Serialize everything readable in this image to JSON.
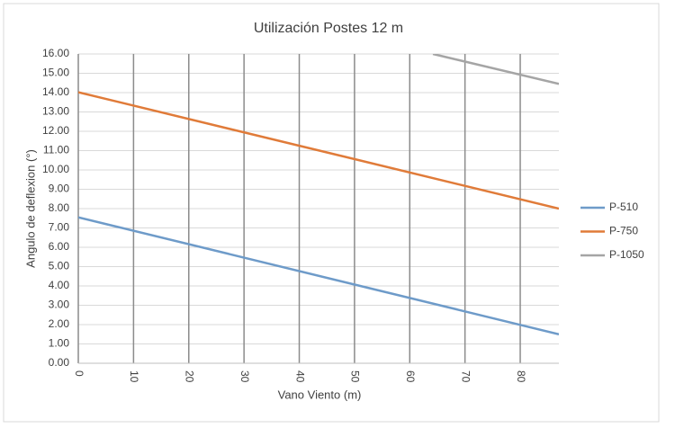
{
  "chart_data": {
    "type": "line",
    "title": "Utilización  Postes 12 m",
    "x_label": "Vano Viento (m)",
    "y_label": "Angulo de deflexion (°)",
    "xlim": [
      0,
      87
    ],
    "xticks": [
      0,
      10,
      20,
      30,
      40,
      50,
      60,
      70,
      80
    ],
    "ylim": [
      0,
      16
    ],
    "yticks": [
      {
        "value": 0,
        "label": "0.00"
      },
      {
        "value": 1,
        "label": "1.00"
      },
      {
        "value": 2,
        "label": "2.00"
      },
      {
        "value": 3,
        "label": "3.00"
      },
      {
        "value": 4,
        "label": "4.00"
      },
      {
        "value": 5,
        "label": "5.00"
      },
      {
        "value": 6,
        "label": "6.00"
      },
      {
        "value": 7,
        "label": "7.00"
      },
      {
        "value": 8,
        "label": "8.00"
      },
      {
        "value": 9,
        "label": "9.00"
      },
      {
        "value": 10,
        "label": "10.00"
      },
      {
        "value": 11,
        "label": "11.00"
      },
      {
        "value": 12,
        "label": "12.00"
      },
      {
        "value": 13,
        "label": "13.00"
      },
      {
        "value": 14,
        "label": "14.00"
      },
      {
        "value": 15,
        "label": "15.00"
      },
      {
        "value": 16,
        "label": "16.00"
      }
    ],
    "grid": true,
    "legend": "right",
    "series": [
      {
        "name": "P-510",
        "color": "#6e9bc9",
        "x": [
          0,
          87
        ],
        "values": [
          7.55,
          1.5
        ]
      },
      {
        "name": "P-750",
        "color": "#e07b39",
        "x": [
          0,
          87
        ],
        "values": [
          14.02,
          8.0
        ]
      },
      {
        "name": "P-1050",
        "color": "#a5a5a5",
        "x": [
          64.2,
          87
        ],
        "values": [
          16.0,
          14.45
        ]
      }
    ]
  }
}
